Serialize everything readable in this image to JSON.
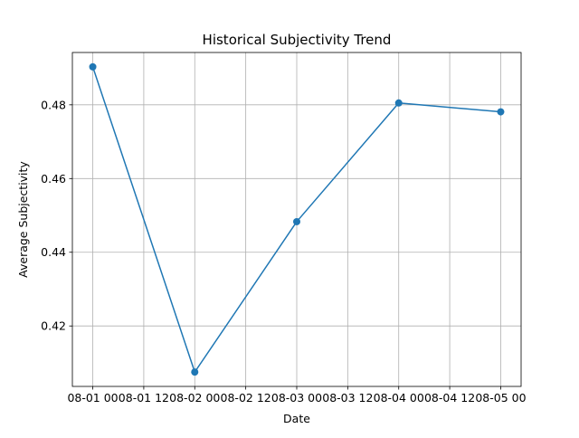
{
  "chart_data": {
    "type": "line",
    "title": "Historical Subjectivity Trend",
    "xlabel": "Date",
    "ylabel": "Average Subjectivity",
    "x": [
      "08-01",
      "08-02",
      "08-03",
      "08-04",
      "08-05"
    ],
    "series": [
      {
        "values": [
          0.4903,
          0.4075,
          0.4483,
          0.4805,
          0.4781
        ],
        "color": "#1f77b4",
        "marker": "circle"
      }
    ],
    "x_ticks": [
      "08-01 00",
      "08-01 12",
      "08-02 00",
      "08-02 12",
      "08-03 00",
      "08-03 12",
      "08-04 00",
      "08-04 12",
      "08-05 00"
    ],
    "y_ticks": [
      "0.42",
      "0.44",
      "0.46",
      "0.48"
    ],
    "xlim": [
      -0.2,
      4.2
    ],
    "ylim": [
      0.4036,
      0.4942
    ],
    "grid": true
  }
}
